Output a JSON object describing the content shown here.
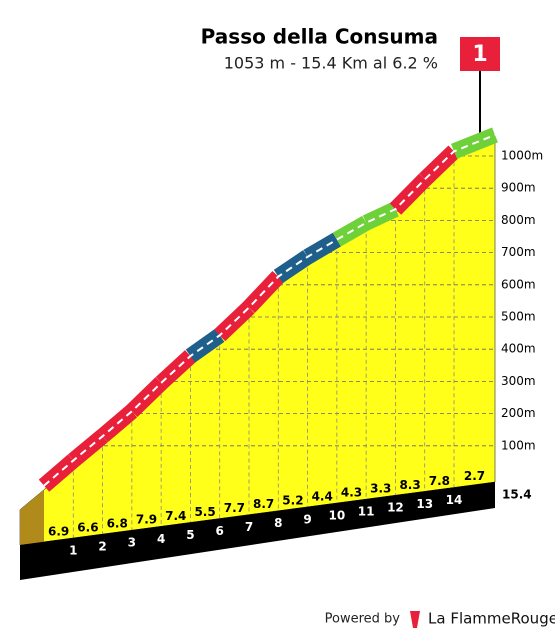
{
  "chart_data": {
    "type": "climb-profile",
    "title": "Passo della Consuma",
    "subtitle": "1053 m - 15.4 Km al 6.2 %",
    "summit_elevation": 1053,
    "flag": "1",
    "xlim": [
      0,
      15.4
    ],
    "xticks": [
      1,
      2,
      3,
      4,
      5,
      6,
      7,
      8,
      9,
      10,
      11,
      12,
      13,
      14,
      15.4
    ],
    "gradients": [
      6.9,
      6.6,
      6.8,
      7.9,
      7.4,
      5.5,
      7.7,
      8.7,
      5.2,
      4.4,
      4.3,
      3.3,
      8.3,
      7.8,
      2.7
    ],
    "colors": [
      "#e8203a",
      "#e8203a",
      "#e8203a",
      "#e8203a",
      "#e8203a",
      "#1f5f8b",
      "#e8203a",
      "#e8203a",
      "#1f5f8b",
      "#1f5f8b",
      "#6ed13a",
      "#6ed13a",
      "#e8203a",
      "#e8203a",
      "#6ed13a"
    ],
    "fill": "#ffff1a",
    "yticks": [
      {
        "value": 100,
        "label": "100m"
      },
      {
        "value": 200,
        "label": "200m"
      },
      {
        "value": 300,
        "label": "300m"
      },
      {
        "value": 400,
        "label": "400m"
      },
      {
        "value": 500,
        "label": "500m"
      },
      {
        "value": 600,
        "label": "600m"
      },
      {
        "value": 700,
        "label": "700m"
      },
      {
        "value": 800,
        "label": "800m"
      },
      {
        "value": 900,
        "label": "900m"
      },
      {
        "value": 1000,
        "label": "1000m"
      }
    ]
  },
  "footer": {
    "powered_by": "Powered by",
    "brand": "La FlammeRouge"
  }
}
